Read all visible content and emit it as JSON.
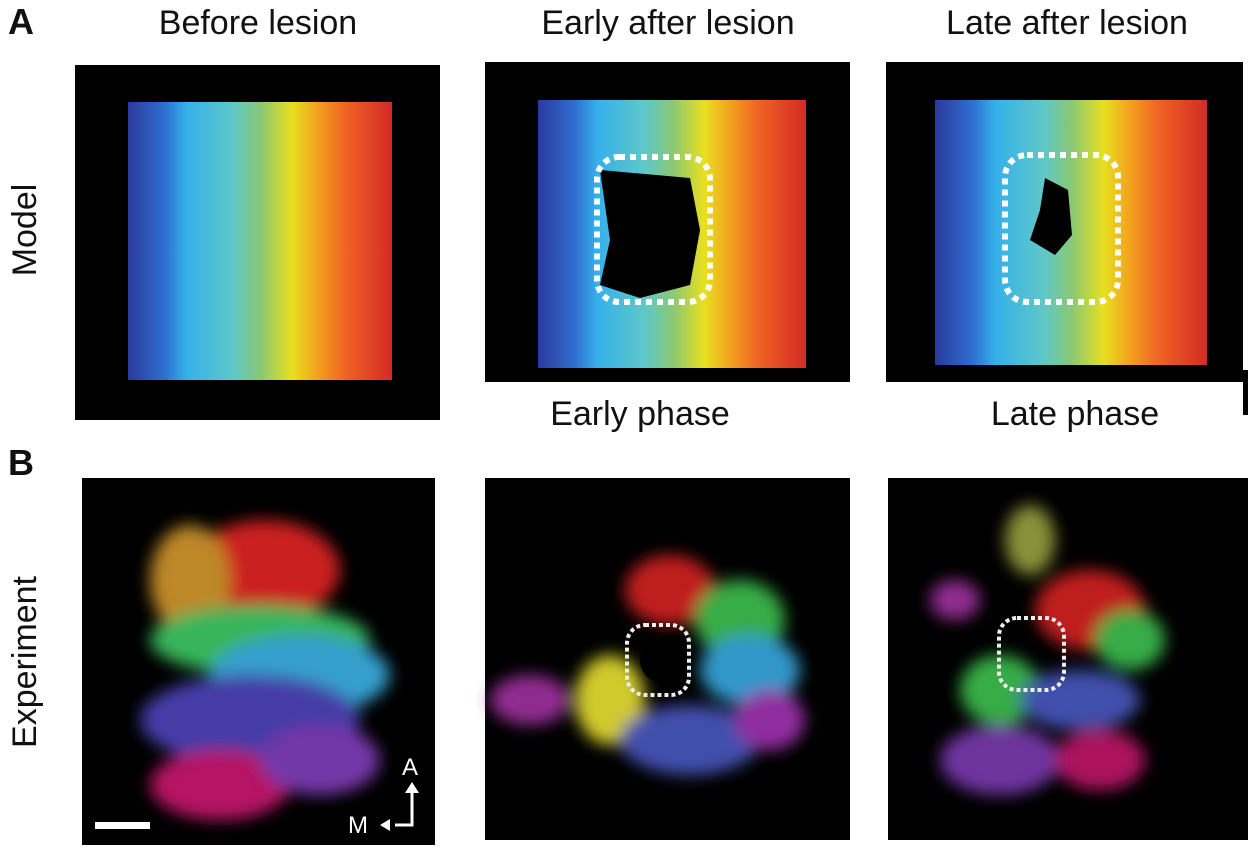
{
  "panel_labels": [
    "A",
    "B"
  ],
  "columns": [
    "Before lesion",
    "Early after lesion",
    "Late after lesion"
  ],
  "row_labels": [
    "Model",
    "Experiment"
  ],
  "phase_labels": [
    "Early phase",
    "Late phase"
  ],
  "orientation": {
    "anterior": "A",
    "medial": "M"
  }
}
